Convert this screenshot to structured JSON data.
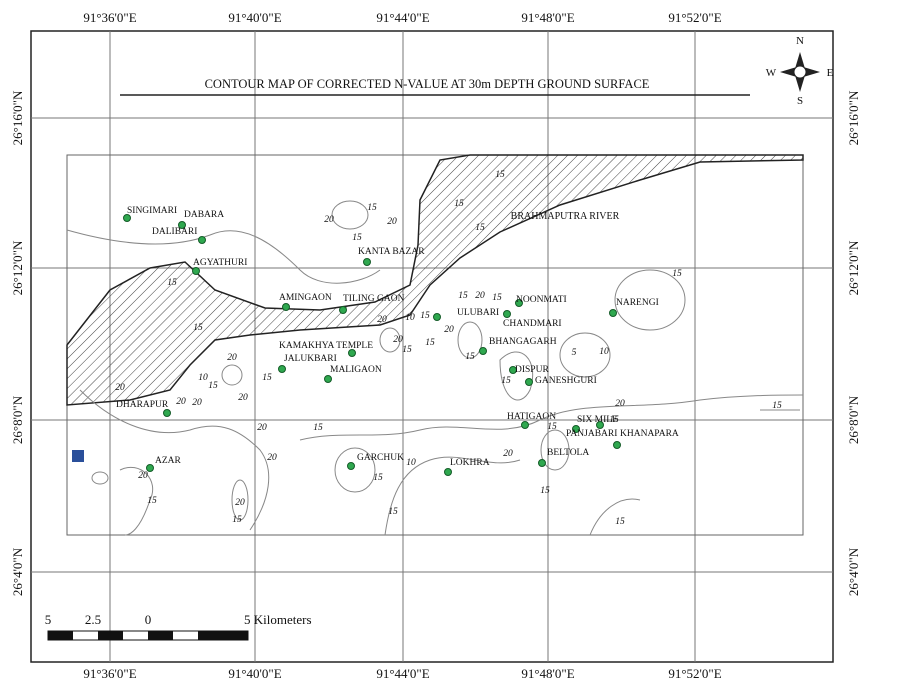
{
  "title": "CONTOUR MAP OF CORRECTED N-VALUE AT 30m DEPTH GROUND SURFACE",
  "grid": {
    "longitudes": [
      "91°36'0\"E",
      "91°40'0\"E",
      "91°44'0\"E",
      "91°48'0\"E",
      "91°52'0\"E"
    ],
    "latitudes": [
      "26°16'0\"N",
      "26°12'0\"N",
      "26°8'0\"N",
      "26°4'0\"N"
    ]
  },
  "compass": {
    "north": "N",
    "east": "E",
    "south": "S",
    "west": "W"
  },
  "scale_bar": {
    "labels": [
      "5",
      "2.5",
      "0",
      "5 Kilometers"
    ]
  },
  "river": "BRAHMAPUTRA RIVER",
  "places": [
    "SINGIMARI",
    "DABARA",
    "DALIBARI",
    "AGYATHURI",
    "AMINGAON",
    "TILING GAON",
    "KANTA BAZAR",
    "KAMAKHYA TEMPLE",
    "JALUKBARI",
    "MALIGAON",
    "DHARAPUR",
    "AZAR",
    "GARCHUK",
    "LOKHRA",
    "ULUBARI",
    "NOONMATI",
    "CHANDMARI",
    "NARENGI",
    "BHANGAGARH",
    "DISPUR",
    "GANESHGURI",
    "HATIGAON",
    "SIX MILE",
    "PANJABARI",
    "KHANAPARA",
    "BELTOLA"
  ],
  "contour_labels": [
    "15",
    "15",
    "20",
    "10",
    "15",
    "20",
    "20",
    "20",
    "20",
    "20",
    "15",
    "15",
    "20",
    "15",
    "15",
    "20",
    "20",
    "10",
    "20",
    "15",
    "15",
    "15",
    "20",
    "15",
    "20",
    "15",
    "15",
    "15",
    "5",
    "10",
    "15",
    "15",
    "15",
    "15",
    "15",
    "15",
    "20",
    "15",
    "15",
    "20",
    "10",
    "15",
    "15",
    "15",
    "20",
    "20",
    "20",
    "15",
    "15"
  ]
}
